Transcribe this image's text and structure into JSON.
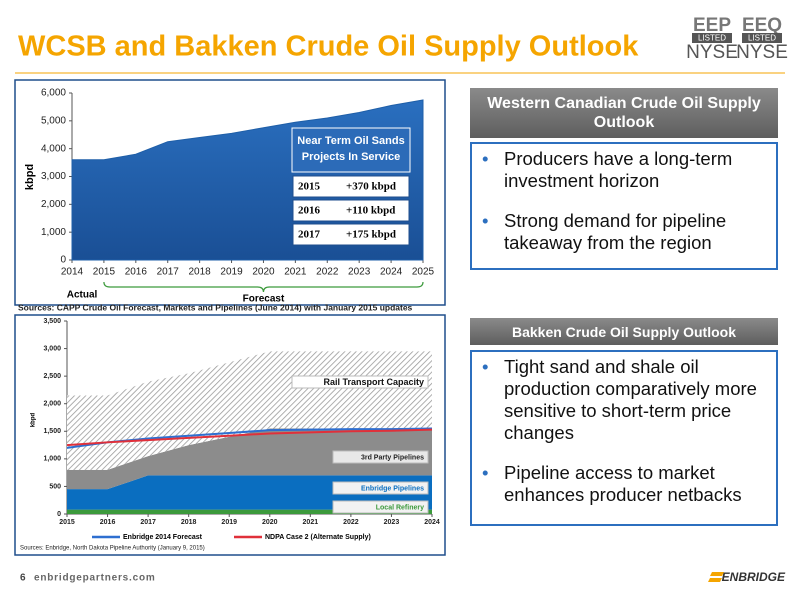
{
  "header": {
    "title": "WCSB and Bakken Crude Oil Supply Outlook",
    "logos": [
      {
        "ticker": "EEP",
        "listed": "LISTED",
        "exchange": "NYSE"
      },
      {
        "ticker": "EEQ",
        "listed": "LISTED",
        "exchange": "NYSE"
      }
    ]
  },
  "chart_data": [
    {
      "type": "area",
      "y_label": "kbpd",
      "x": [
        2014,
        2015,
        2016,
        2017,
        2018,
        2019,
        2020,
        2021,
        2022,
        2023,
        2024,
        2025
      ],
      "values": [
        3600,
        3600,
        3800,
        4250,
        4400,
        4550,
        4750,
        4950,
        5100,
        5300,
        5550,
        5750
      ],
      "color": "#1f5fa8",
      "xlim": [
        2014,
        2025
      ],
      "xticks": [
        2014,
        2015,
        2016,
        2017,
        2018,
        2019,
        2020,
        2021,
        2022,
        2023,
        2024,
        2025
      ],
      "ylim": [
        0,
        6000
      ],
      "yticks": [
        0,
        {
          "value": 1000,
          "label": "1,000"
        },
        {
          "value": 2000,
          "label": "2,000"
        },
        {
          "value": 3000,
          "label": "3,000"
        },
        {
          "value": 4000,
          "label": "4,000"
        },
        {
          "value": 5000,
          "label": "5,000"
        },
        {
          "value": 6000,
          "label": "6,000"
        }
      ],
      "annotation": {
        "title": "Near Term Oil Sands Projects In Service",
        "rows": [
          [
            "2015",
            "+370 kbpd"
          ],
          [
            "2016",
            "+110 kbpd"
          ],
          [
            "2017",
            "+175 kbpd"
          ]
        ]
      },
      "period_labels": [
        "Actual",
        "Forecast"
      ],
      "source": "Sources: CAPP Crude Oil Forecast, Markets and Pipelines  (June 2014) with January 2015 updates"
    },
    {
      "type": "stacked_area",
      "y_label": "kbpd",
      "x": [
        2015,
        2016,
        2017,
        2018,
        2019,
        2020,
        2021,
        2022,
        2023,
        2024
      ],
      "xlim": [
        2015,
        2024
      ],
      "xticks": [
        2015,
        2016,
        2017,
        2018,
        2019,
        2020,
        2021,
        2022,
        2023,
        2024
      ],
      "ylim": [
        0,
        3500
      ],
      "yticks": [
        0,
        500,
        {
          "value": 1000,
          "label": "1,000"
        },
        {
          "value": 1500,
          "label": "1,500"
        },
        {
          "value": 2000,
          "label": "2,000"
        },
        {
          "value": 2500,
          "label": "2,500"
        },
        {
          "value": 3000,
          "label": "3,000"
        },
        {
          "value": 3500,
          "label": "3,500"
        }
      ],
      "series": [
        {
          "name": "Local Refinery",
          "color": "#3c9a3c",
          "values": [
            80,
            80,
            80,
            80,
            80,
            80,
            80,
            80,
            80,
            80
          ]
        },
        {
          "name": "Enbridge Pipelines",
          "color": "#0a6ec0",
          "values": [
            370,
            370,
            620,
            620,
            620,
            620,
            620,
            620,
            620,
            620
          ]
        },
        {
          "name": "3rd Party Pipelines",
          "color": "#8c8c8c",
          "values": [
            350,
            350,
            350,
            550,
            700,
            850,
            850,
            850,
            850,
            850
          ]
        },
        {
          "name": "Rail Transport Capacity",
          "color": "#b0b0b0",
          "pattern": "hatch",
          "values": [
            1350,
            1350,
            1350,
            1300,
            1350,
            1400,
            1400,
            1400,
            1400,
            1400
          ]
        }
      ],
      "lines": [
        {
          "name": "Enbridge 2014 Forecast",
          "color": "#2e6fd0",
          "values": [
            1200,
            1300,
            1370,
            1420,
            1470,
            1520,
            1530,
            1540,
            1540,
            1550
          ]
        },
        {
          "name": "NDPA Case 2 (Alternate Supply)",
          "color": "#e0303a",
          "values": [
            1250,
            1300,
            1340,
            1380,
            1420,
            1460,
            1480,
            1500,
            1510,
            1530
          ]
        }
      ],
      "source": "Sources: Enbridge, North Dakota Pipeline Authority (January 9, 2015)"
    }
  ],
  "panels": [
    {
      "title": "Western Canadian Crude Oil Supply Outlook",
      "bullets": [
        "Producers have a long-term investment horizon",
        "Strong demand for pipeline takeaway from the region"
      ]
    },
    {
      "title": "Bakken Crude Oil Supply Outlook",
      "bullets": [
        "Tight sand and shale oil production comparatively more sensitive to short-term price changes",
        "Pipeline access to market enhances producer netbacks"
      ]
    }
  ],
  "footer": {
    "page": "6",
    "site": "enbridgepartners.com",
    "brand": "ENBRIDGE"
  }
}
